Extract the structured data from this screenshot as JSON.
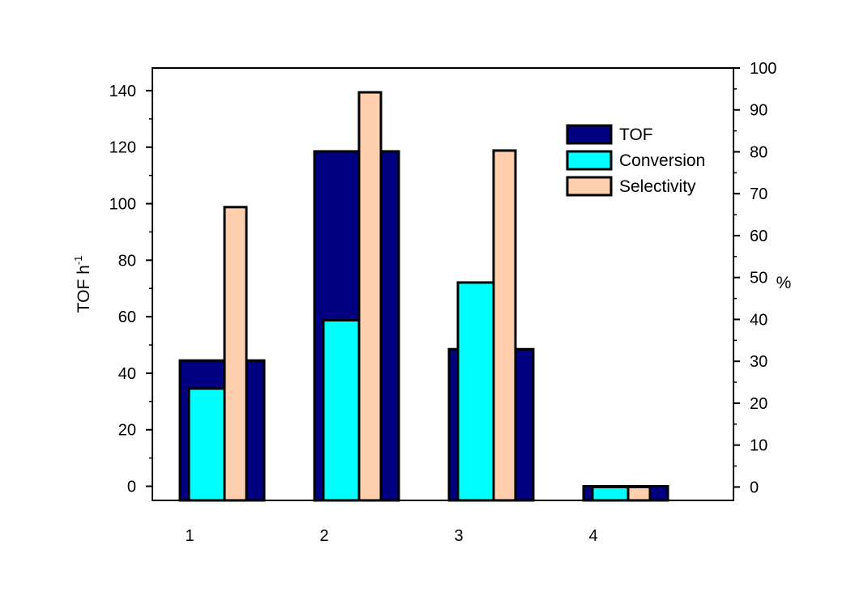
{
  "chart_data": {
    "type": "bar",
    "categories": [
      "1",
      "2",
      "3",
      "4"
    ],
    "y_left": {
      "label": "TOF h",
      "label_superscript": "-1",
      "ylim": [
        -5,
        148
      ],
      "ticks": [
        0,
        20,
        40,
        60,
        80,
        100,
        120,
        140
      ]
    },
    "y_right": {
      "label": "%",
      "ylim": [
        -3.2,
        100
      ],
      "ticks": [
        0,
        10,
        20,
        30,
        40,
        50,
        60,
        70,
        80,
        90,
        100
      ]
    },
    "series": [
      {
        "name": "TOF",
        "axis": "left",
        "color": "#000080",
        "values": [
          44.5,
          118.5,
          48.5,
          0
        ]
      },
      {
        "name": "Conversion",
        "axis": "right",
        "color": "#00ffff",
        "values": [
          23.5,
          39.8,
          48.8,
          0
        ]
      },
      {
        "name": "Selectivity",
        "axis": "right",
        "color": "#ffcfae",
        "values": [
          66.8,
          94.2,
          80.3,
          0
        ]
      }
    ],
    "legend_position": "top-right",
    "grid": false
  }
}
